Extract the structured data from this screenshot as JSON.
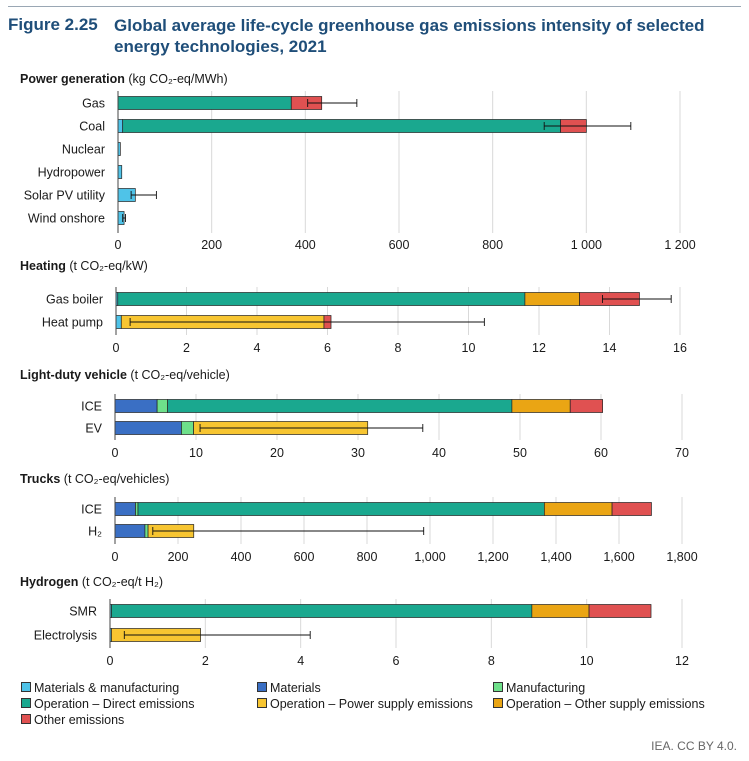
{
  "figure": {
    "number": "Figure 2.25",
    "title": "Global average life-cycle greenhouse gas emissions intensity of selected energy technologies, 2021",
    "credit": "IEA. CC BY 4.0."
  },
  "colors": {
    "materials_manufacturing": "#4fc3e8",
    "materials": "#3a6fc4",
    "manufacturing": "#6ee08a",
    "direct": "#1aa88f",
    "power_supply": "#f7c531",
    "other_supply": "#eaa514",
    "other": "#e05151",
    "gridline": "#d9d9d9"
  },
  "legend": [
    {
      "key": "materials_manufacturing",
      "label": "Materials & manufacturing"
    },
    {
      "key": "materials",
      "label": "Materials"
    },
    {
      "key": "manufacturing",
      "label": "Manufacturing"
    },
    {
      "key": "direct",
      "label": "Operation – Direct emissions"
    },
    {
      "key": "power_supply",
      "label": "Operation – Power supply emissions"
    },
    {
      "key": "other_supply",
      "label": "Operation – Other supply emissions"
    },
    {
      "key": "other",
      "label": "Other emissions"
    }
  ],
  "chart_data": [
    {
      "type": "bar",
      "orientation": "horizontal",
      "stacked": true,
      "title": "Power generation",
      "unit": "(kg CO₂-eq/MWh)",
      "xlim": [
        0,
        1200
      ],
      "ticks": [
        "0",
        "200",
        "400",
        "600",
        "800",
        "1 000",
        "1 200"
      ],
      "tick_values": [
        0,
        200,
        400,
        600,
        800,
        1000,
        1200
      ],
      "categories": [
        "Gas",
        "Coal",
        "Nuclear",
        "Hydropower",
        "Solar PV utility",
        "Wind onshore"
      ],
      "series": [
        {
          "key": "materials_manufacturing",
          "values": [
            0,
            10,
            5,
            8,
            37,
            13
          ]
        },
        {
          "key": "direct",
          "values": [
            370,
            935,
            0,
            0,
            0,
            0
          ]
        },
        {
          "key": "other",
          "values": [
            65,
            55,
            0,
            0,
            0,
            0
          ]
        }
      ],
      "error_bars": [
        [
          405,
          510
        ],
        [
          910,
          1095
        ],
        null,
        null,
        [
          28,
          82
        ],
        [
          10,
          16
        ]
      ]
    },
    {
      "type": "bar",
      "orientation": "horizontal",
      "stacked": true,
      "title": "Heating",
      "unit": "(t CO₂-eq/kW)",
      "xlim": [
        0,
        16
      ],
      "ticks": [
        "0",
        "2",
        "4",
        "6",
        "8",
        "10",
        "12",
        "14",
        "16"
      ],
      "tick_values": [
        0,
        2,
        4,
        6,
        8,
        10,
        12,
        14,
        16
      ],
      "categories": [
        "Gas boiler",
        "Heat pump"
      ],
      "series": [
        {
          "key": "materials_manufacturing",
          "values": [
            0.05,
            0.15
          ]
        },
        {
          "key": "direct",
          "values": [
            11.55,
            0
          ]
        },
        {
          "key": "power_supply",
          "values": [
            0,
            5.75
          ]
        },
        {
          "key": "other_supply",
          "values": [
            1.55,
            0
          ]
        },
        {
          "key": "other",
          "values": [
            1.7,
            0.2
          ]
        }
      ],
      "error_bars": [
        [
          13.8,
          15.75
        ],
        [
          0.4,
          10.45
        ]
      ]
    },
    {
      "type": "bar",
      "orientation": "horizontal",
      "stacked": true,
      "title": "Light-duty vehicle",
      "unit": "(t CO₂-eq/vehicle)",
      "xlim": [
        0,
        70
      ],
      "ticks": [
        "0",
        "10",
        "20",
        "30",
        "40",
        "50",
        "60",
        "70"
      ],
      "tick_values": [
        0,
        10,
        20,
        30,
        40,
        50,
        60,
        70
      ],
      "categories": [
        "ICE",
        "EV"
      ],
      "series": [
        {
          "key": "materials",
          "values": [
            5.2,
            8.2
          ]
        },
        {
          "key": "manufacturing",
          "values": [
            1.3,
            1.5
          ]
        },
        {
          "key": "direct",
          "values": [
            42.5,
            0
          ]
        },
        {
          "key": "power_supply",
          "values": [
            0,
            21.5
          ]
        },
        {
          "key": "other_supply",
          "values": [
            7.2,
            0
          ]
        },
        {
          "key": "other",
          "values": [
            4.0,
            0
          ]
        }
      ],
      "error_bars": [
        null,
        [
          10.5,
          38
        ]
      ]
    },
    {
      "type": "bar",
      "orientation": "horizontal",
      "stacked": true,
      "title": "Trucks",
      "unit": "(t CO₂-eq/vehicles)",
      "xlim": [
        0,
        1800
      ],
      "ticks": [
        "0",
        "200",
        "400",
        "600",
        "800",
        "1,000",
        "1,200",
        "1,400",
        "1,600",
        "1,800"
      ],
      "tick_values": [
        0,
        200,
        400,
        600,
        800,
        1000,
        1200,
        1400,
        1600,
        1800
      ],
      "categories": [
        "ICE",
        "H₂"
      ],
      "series": [
        {
          "key": "materials",
          "values": [
            65,
            95
          ]
        },
        {
          "key": "manufacturing",
          "values": [
            8,
            10
          ]
        },
        {
          "key": "direct",
          "values": [
            1290,
            0
          ]
        },
        {
          "key": "power_supply",
          "values": [
            0,
            145
          ]
        },
        {
          "key": "other_supply",
          "values": [
            215,
            0
          ]
        },
        {
          "key": "other",
          "values": [
            125,
            0
          ]
        }
      ],
      "error_bars": [
        null,
        [
          120,
          980
        ]
      ]
    },
    {
      "type": "bar",
      "orientation": "horizontal",
      "stacked": true,
      "title": "Hydrogen",
      "unit": "(t CO₂-eq/t H₂)",
      "xlim": [
        0,
        12
      ],
      "ticks": [
        "0",
        "2",
        "4",
        "6",
        "8",
        "10",
        "12"
      ],
      "tick_values": [
        0,
        2,
        4,
        6,
        8,
        10,
        12
      ],
      "categories": [
        "SMR",
        "Electrolysis"
      ],
      "series": [
        {
          "key": "materials_manufacturing",
          "values": [
            0.03,
            0.03
          ]
        },
        {
          "key": "direct",
          "values": [
            8.82,
            0
          ]
        },
        {
          "key": "power_supply",
          "values": [
            0,
            1.87
          ]
        },
        {
          "key": "other_supply",
          "values": [
            1.2,
            0
          ]
        },
        {
          "key": "other",
          "values": [
            1.3,
            0
          ]
        }
      ],
      "error_bars": [
        null,
        [
          0.3,
          4.2
        ]
      ]
    }
  ]
}
